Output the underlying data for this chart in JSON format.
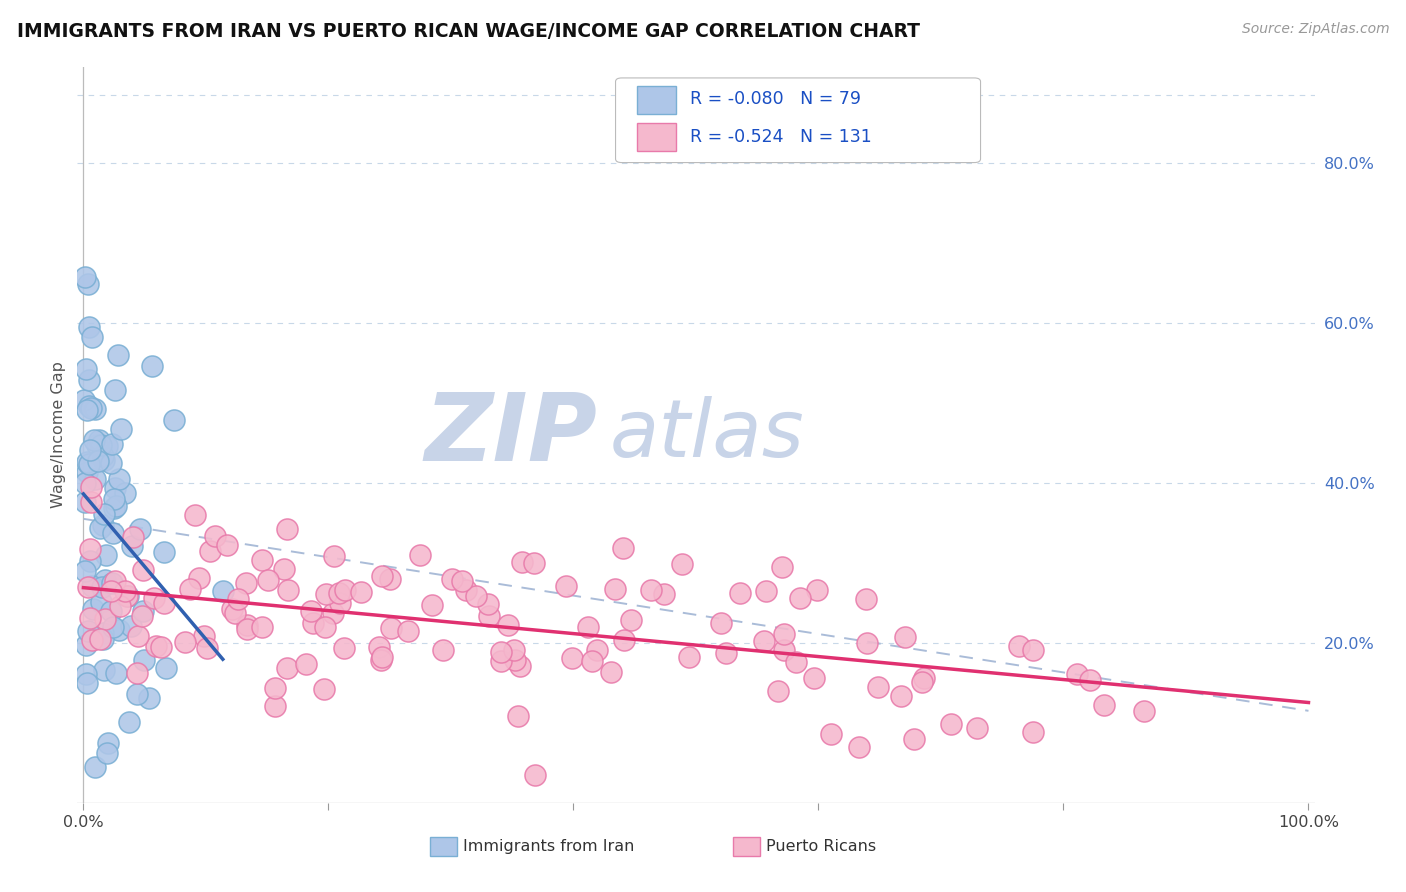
{
  "title": "IMMIGRANTS FROM IRAN VS PUERTO RICAN WAGE/INCOME GAP CORRELATION CHART",
  "source_text": "Source: ZipAtlas.com",
  "ylabel": "Wage/Income Gap",
  "iran_R": -0.08,
  "iran_N": 79,
  "pr_R": -0.524,
  "pr_N": 131,
  "iran_scatter_color": "#aec6e8",
  "iran_edge_color": "#7aafd4",
  "pr_scatter_color": "#f5b8cd",
  "pr_edge_color": "#e87aaa",
  "iran_line_color": "#3060b0",
  "pr_line_color": "#e03070",
  "dashed_line_color": "#aabcd8",
  "background_color": "#ffffff",
  "grid_color": "#c8d8e8",
  "legend_label_iran": "Immigrants from Iran",
  "legend_label_pr": "Puerto Ricans",
  "watermark_zip_color": "#c8d4e8",
  "watermark_atlas_color": "#c8d4e8"
}
